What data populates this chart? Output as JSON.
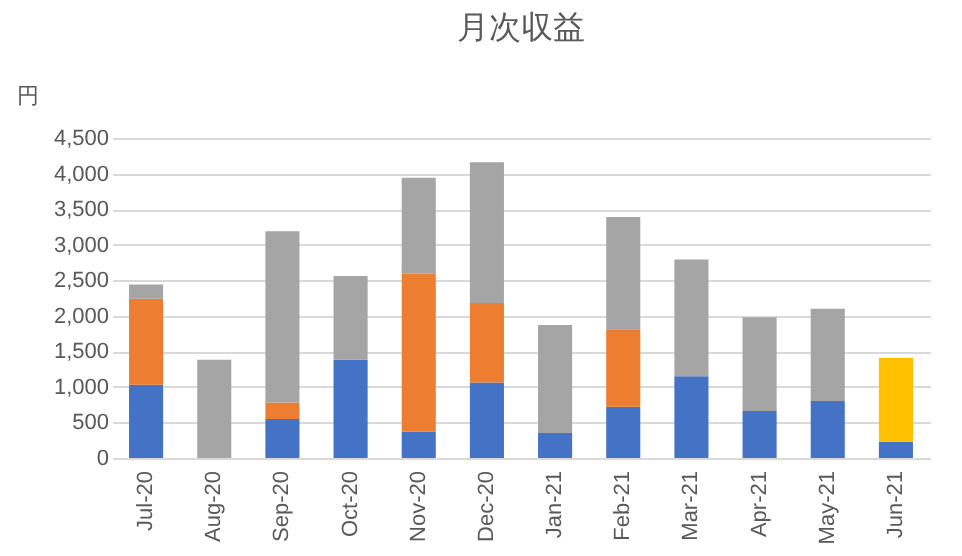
{
  "chart_data": {
    "type": "bar",
    "title": "月次収益",
    "ylabel": "円",
    "stacked": true,
    "categories": [
      "Jul-20",
      "Aug-20",
      "Sep-20",
      "Oct-20",
      "Nov-20",
      "Dec-20",
      "Jan-21",
      "Feb-21",
      "Mar-21",
      "Apr-21",
      "May-21",
      "Jun-21"
    ],
    "series": [
      {
        "color": "#4472c4",
        "values": [
          1030,
          null,
          550,
          1380,
          370,
          1060,
          350,
          720,
          1150,
          660,
          800,
          230
        ]
      },
      {
        "color": "#ed7d31",
        "values": [
          1210,
          null,
          230,
          null,
          2220,
          1120,
          null,
          1090,
          null,
          null,
          null,
          null
        ]
      },
      {
        "color": "#a5a5a5",
        "values": [
          200,
          1380,
          2410,
          1180,
          1350,
          1980,
          1520,
          1580,
          1640,
          1320,
          1300,
          null
        ]
      },
      {
        "color": "#ffc000",
        "values": [
          null,
          null,
          null,
          null,
          null,
          null,
          null,
          null,
          null,
          null,
          null,
          1180
        ]
      }
    ],
    "ylim": [
      0,
      4500
    ],
    "yticks": [
      0,
      500,
      {
        "value": 1000,
        "label": "1,000"
      },
      {
        "value": 1500,
        "label": "1,500"
      },
      {
        "value": 2000,
        "label": "2,000"
      },
      {
        "value": 2500,
        "label": "2,500"
      },
      {
        "value": 3000,
        "label": "3,000"
      },
      {
        "value": 3500,
        "label": "3,500"
      },
      {
        "value": 4000,
        "label": "4,000"
      },
      {
        "value": 4500,
        "label": "4,500"
      }
    ],
    "grid": "y"
  }
}
